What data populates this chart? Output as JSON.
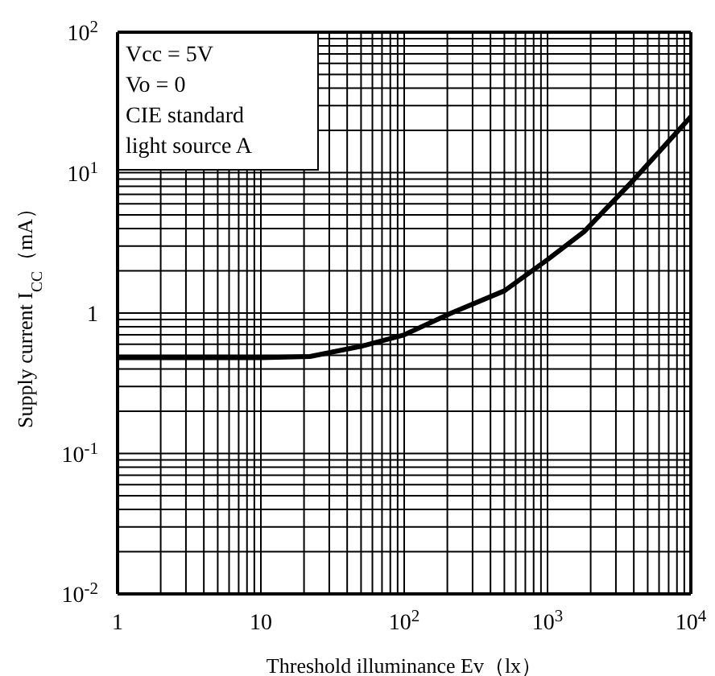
{
  "chart_data": {
    "type": "line",
    "xlabel": "Threshold illuminance Ev（lx）",
    "ylabel": "Supply current I$_{CC}$（mA）",
    "annotations": [
      "Vcc = 5V",
      "Vo = 0",
      "CIE standard",
      "light source A"
    ],
    "log": "xy",
    "grid": true,
    "xlim": [
      1,
      10000
    ],
    "xticks": [
      1,
      10,
      {
        "value": 100,
        "label": "10$^{2}$"
      },
      {
        "value": 1000,
        "label": "10$^{3}$"
      },
      {
        "value": 10000,
        "label": "10$^{4}$"
      }
    ],
    "ylim": [
      0.01,
      100
    ],
    "yticks": [
      {
        "value": 0.01,
        "label": "10$^{-2}$"
      },
      {
        "value": 0.1,
        "label": "10$^{-1}$"
      },
      1,
      {
        "value": 10,
        "label": "10$^{1}$"
      },
      {
        "value": 100,
        "label": "10$^{2}$"
      }
    ],
    "series": [
      {
        "color": "#000000",
        "x": [
          1,
          10,
          22,
          50,
          100,
          213,
          500,
          1000,
          1800,
          4000,
          10000
        ],
        "values": [
          0.48,
          0.48,
          0.49,
          0.58,
          0.7,
          1.0,
          1.44,
          2.4,
          3.8,
          8.9,
          25
        ]
      }
    ]
  }
}
